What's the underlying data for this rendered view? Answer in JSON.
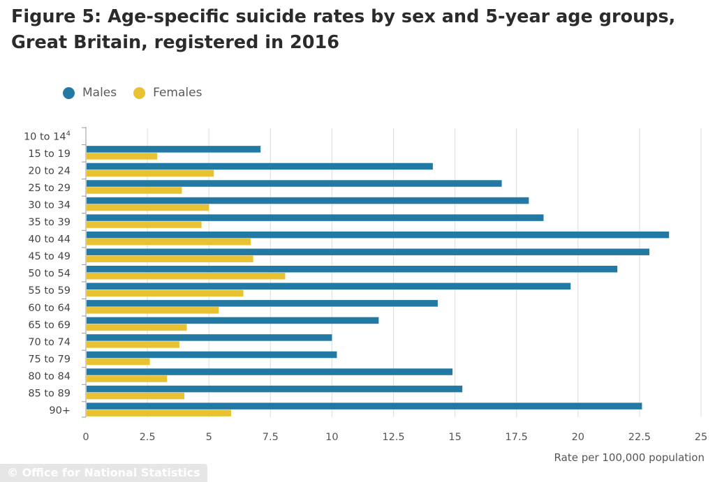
{
  "title": "Figure 5: Age-specific suicide rates by sex and 5-year age groups, Great Britain, registered in 2016",
  "footer": "© Office for National Statistics",
  "colors": {
    "males": "#2279a4",
    "females": "#e8c233",
    "grid": "#dcdcdc",
    "axis": "#999999"
  },
  "chart_data": {
    "type": "bar",
    "orientation": "horizontal",
    "title": "Figure 5: Age-specific suicide rates by sex and 5-year age groups, Great Britain, registered in 2016",
    "xlabel": "Rate per 100,000 population",
    "ylabel": "",
    "xlim": [
      0,
      25
    ],
    "x_ticks": [
      "0",
      "2.5",
      "5",
      "7.5",
      "10",
      "12.5",
      "15",
      "17.5",
      "20",
      "22.5",
      "25"
    ],
    "grid": true,
    "legend_position": "top-left",
    "categories": [
      "10 to 14",
      "15 to 19",
      "20 to 24",
      "25 to 29",
      "30 to 34",
      "35 to 39",
      "40 to 44",
      "45 to 49",
      "50 to 54",
      "55 to 59",
      "60 to 64",
      "65 to 69",
      "70 to 74",
      "75 to 79",
      "80 to 84",
      "85 to 89",
      "90+"
    ],
    "category_footnote": {
      "category": "10 to 14",
      "marker": "4"
    },
    "series": [
      {
        "name": "Males",
        "values": [
          null,
          7.1,
          14.1,
          16.9,
          18.0,
          18.6,
          23.7,
          22.9,
          21.6,
          19.7,
          14.3,
          11.9,
          10.0,
          10.2,
          14.9,
          15.3,
          22.6
        ]
      },
      {
        "name": "Females",
        "values": [
          null,
          2.9,
          5.2,
          3.9,
          5.0,
          4.7,
          6.7,
          6.8,
          8.1,
          6.4,
          5.4,
          4.1,
          3.8,
          2.6,
          3.3,
          4.0,
          5.9
        ]
      }
    ]
  }
}
